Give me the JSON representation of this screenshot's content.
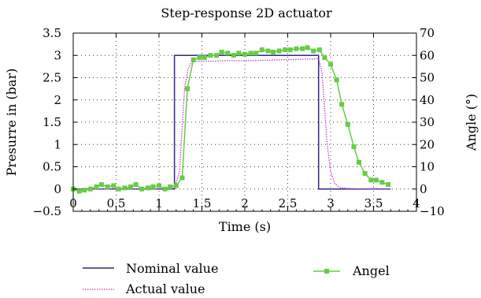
{
  "chart_data": {
    "type": "line",
    "title": "Step-response 2D actuator",
    "xlabel": "Time (s)",
    "ylabel_left": "Presurre in (bar)",
    "ylabel_right": "Angle (°)",
    "xlim": [
      0,
      4
    ],
    "ylim_left": [
      -0.5,
      3.5
    ],
    "ylim_right": [
      -10,
      70
    ],
    "grid": true,
    "legend_position": "bottom",
    "x_tick_labels": [
      "0",
      "0.5",
      "1",
      "1.5",
      "2",
      "2.5",
      "3",
      "3.5",
      "4"
    ],
    "y_left_tick_labels": [
      "−0.5",
      "0",
      "0.5",
      "1",
      "1.5",
      "2",
      "2.5",
      "3",
      "3.5"
    ],
    "y_right_tick_labels": [
      "−10",
      "0",
      "10",
      "20",
      "30",
      "40",
      "50",
      "60",
      "70"
    ],
    "series": [
      {
        "name": "Nominal value",
        "axis": "left",
        "color": "#2b2b80",
        "style": "solid",
        "x": [
          0,
          1.18,
          1.18,
          2.86,
          2.86,
          3.7
        ],
        "y": [
          0,
          0,
          3.0,
          3.0,
          0,
          0
        ]
      },
      {
        "name": "Actual value",
        "axis": "left",
        "color": "#cc33cc",
        "style": "dotted",
        "x": [
          0,
          0.5,
          1.0,
          1.18,
          1.24,
          1.27,
          1.3,
          1.34,
          1.38,
          1.45,
          1.6,
          1.8,
          2.0,
          2.2,
          2.4,
          2.6,
          2.8,
          2.86,
          2.9,
          2.93,
          2.96,
          3.0,
          3.05,
          3.1,
          3.2,
          3.4,
          3.7
        ],
        "y": [
          0,
          0,
          0,
          0.02,
          0.4,
          1.4,
          2.3,
          2.7,
          2.85,
          2.87,
          2.87,
          2.88,
          2.88,
          2.89,
          2.9,
          2.91,
          2.92,
          2.93,
          2.6,
          1.8,
          1.0,
          0.4,
          0.12,
          0.04,
          0.01,
          0,
          0
        ]
      },
      {
        "name": "Angel",
        "axis": "right",
        "color": "#66cc44",
        "style": "solid-markers",
        "x": [
          0.0,
          0.07,
          0.13,
          0.2,
          0.27,
          0.33,
          0.4,
          0.47,
          0.53,
          0.6,
          0.67,
          0.73,
          0.8,
          0.87,
          0.93,
          1.0,
          1.07,
          1.13,
          1.2,
          1.27,
          1.33,
          1.4,
          1.47,
          1.53,
          1.6,
          1.67,
          1.73,
          1.8,
          1.87,
          1.93,
          2.0,
          2.07,
          2.13,
          2.2,
          2.27,
          2.33,
          2.4,
          2.47,
          2.53,
          2.6,
          2.67,
          2.73,
          2.8,
          2.87,
          2.93,
          3.0,
          3.07,
          3.13,
          3.2,
          3.27,
          3.33,
          3.4,
          3.47,
          3.53,
          3.6,
          3.67
        ],
        "y": [
          0,
          -1,
          -0.5,
          0,
          1,
          2,
          1,
          1.5,
          0,
          0.5,
          1,
          2,
          0,
          0.5,
          1,
          1.5,
          0,
          1,
          1.5,
          5,
          45,
          58,
          59,
          59,
          60,
          60,
          61.5,
          61,
          60,
          61,
          60.5,
          61,
          61,
          62.5,
          62,
          61.5,
          62,
          62.5,
          62.5,
          63,
          63,
          63.5,
          62,
          62.5,
          59,
          56,
          49,
          38,
          29,
          19,
          12,
          7,
          4,
          4,
          3,
          2
        ]
      }
    ]
  }
}
